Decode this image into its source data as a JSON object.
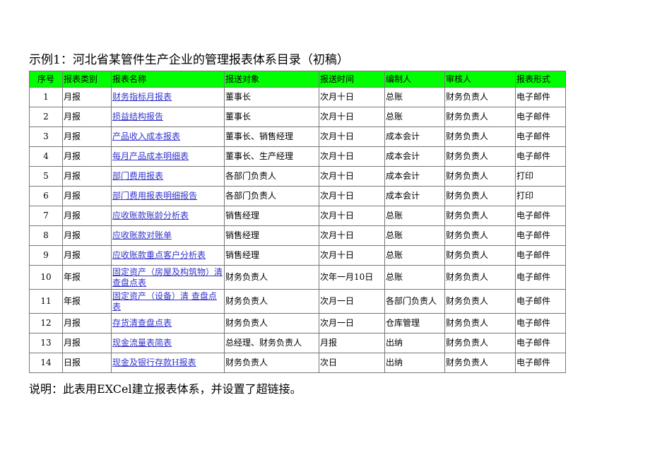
{
  "title": "示例1：河北省某管件生产企业的管理报表体系目录（初稿）",
  "header_color": "#00ff00",
  "link_color": "#3333cc",
  "columns": [
    "序号",
    "报表类别",
    "报表名称",
    "报送对象",
    "报送时间",
    "编制人",
    "审核人",
    "报表形式"
  ],
  "rows": [
    [
      "1",
      "月报",
      "财务指标月报表",
      "董事长",
      "次月十日",
      "总账",
      "财务负责人",
      "电子邮件"
    ],
    [
      "2",
      "月报",
      "损益结构报告",
      "董事长",
      "次月十日",
      "总账",
      "财务负责人",
      "电子邮件"
    ],
    [
      "3",
      "月报",
      "产品收入成本报表",
      "董事长、销售经理",
      "次月十日",
      "成本会计",
      "财务负责人",
      "电子邮件"
    ],
    [
      "4",
      "月报",
      "每月产品成本明细表",
      "董事长、生产经理",
      "次月十日",
      "成本会计",
      "财务负责人",
      "电子邮件"
    ],
    [
      "5",
      "月报",
      "部门费用报表",
      "各部门负责人",
      "次月十日",
      "成本会计",
      "财务负责人",
      "打印"
    ],
    [
      "6",
      "月报",
      "部门费用报表明细报告",
      "各部门负责人",
      "次月十日",
      "成本会计",
      "财务负责人",
      "打印"
    ],
    [
      "7",
      "月报",
      "应收账款账龄分析表",
      "销售经理",
      "次月十日",
      "总账",
      "财务负责人",
      "电子邮件"
    ],
    [
      "8",
      "月报",
      "应收账款对账单",
      "销售经理",
      "次月十日",
      "总账",
      "财务负责人",
      "电子邮件"
    ],
    [
      "9",
      "月报",
      "应收账款重点客户分析表",
      "销售经理",
      "次月十日",
      "总账",
      "财务负责人",
      "电子邮件"
    ],
    [
      "10",
      "年报",
      "固定资产（房屋及构筑物）清查盘点表",
      "财务负责人",
      "次年一月10日",
      "总账",
      "财务负责人",
      "电子邮件"
    ],
    [
      "11",
      "年报",
      "固定资产（设备）清 查盘点表",
      "财务负责人",
      "次月一日",
      "各部门负责人",
      "财务负责人",
      "电子邮件"
    ],
    [
      "12",
      "月报",
      "存货清查盘点表",
      "财务负责人",
      "次月一日",
      "仓库管理",
      "财务负责人",
      "电子邮件"
    ],
    [
      "13",
      "月报",
      "现金流量表简表",
      "总经理、财务负责人",
      "月报",
      "出纳",
      "财务负责人",
      "电子邮件"
    ],
    [
      "14",
      "日报",
      "现金及银行存款H报表",
      "财务负责人",
      "次日",
      "出纳",
      "财务负责人",
      "电子邮件"
    ]
  ],
  "note": "说明：此表用EXCel建立报表体系，并设置了超链接。"
}
